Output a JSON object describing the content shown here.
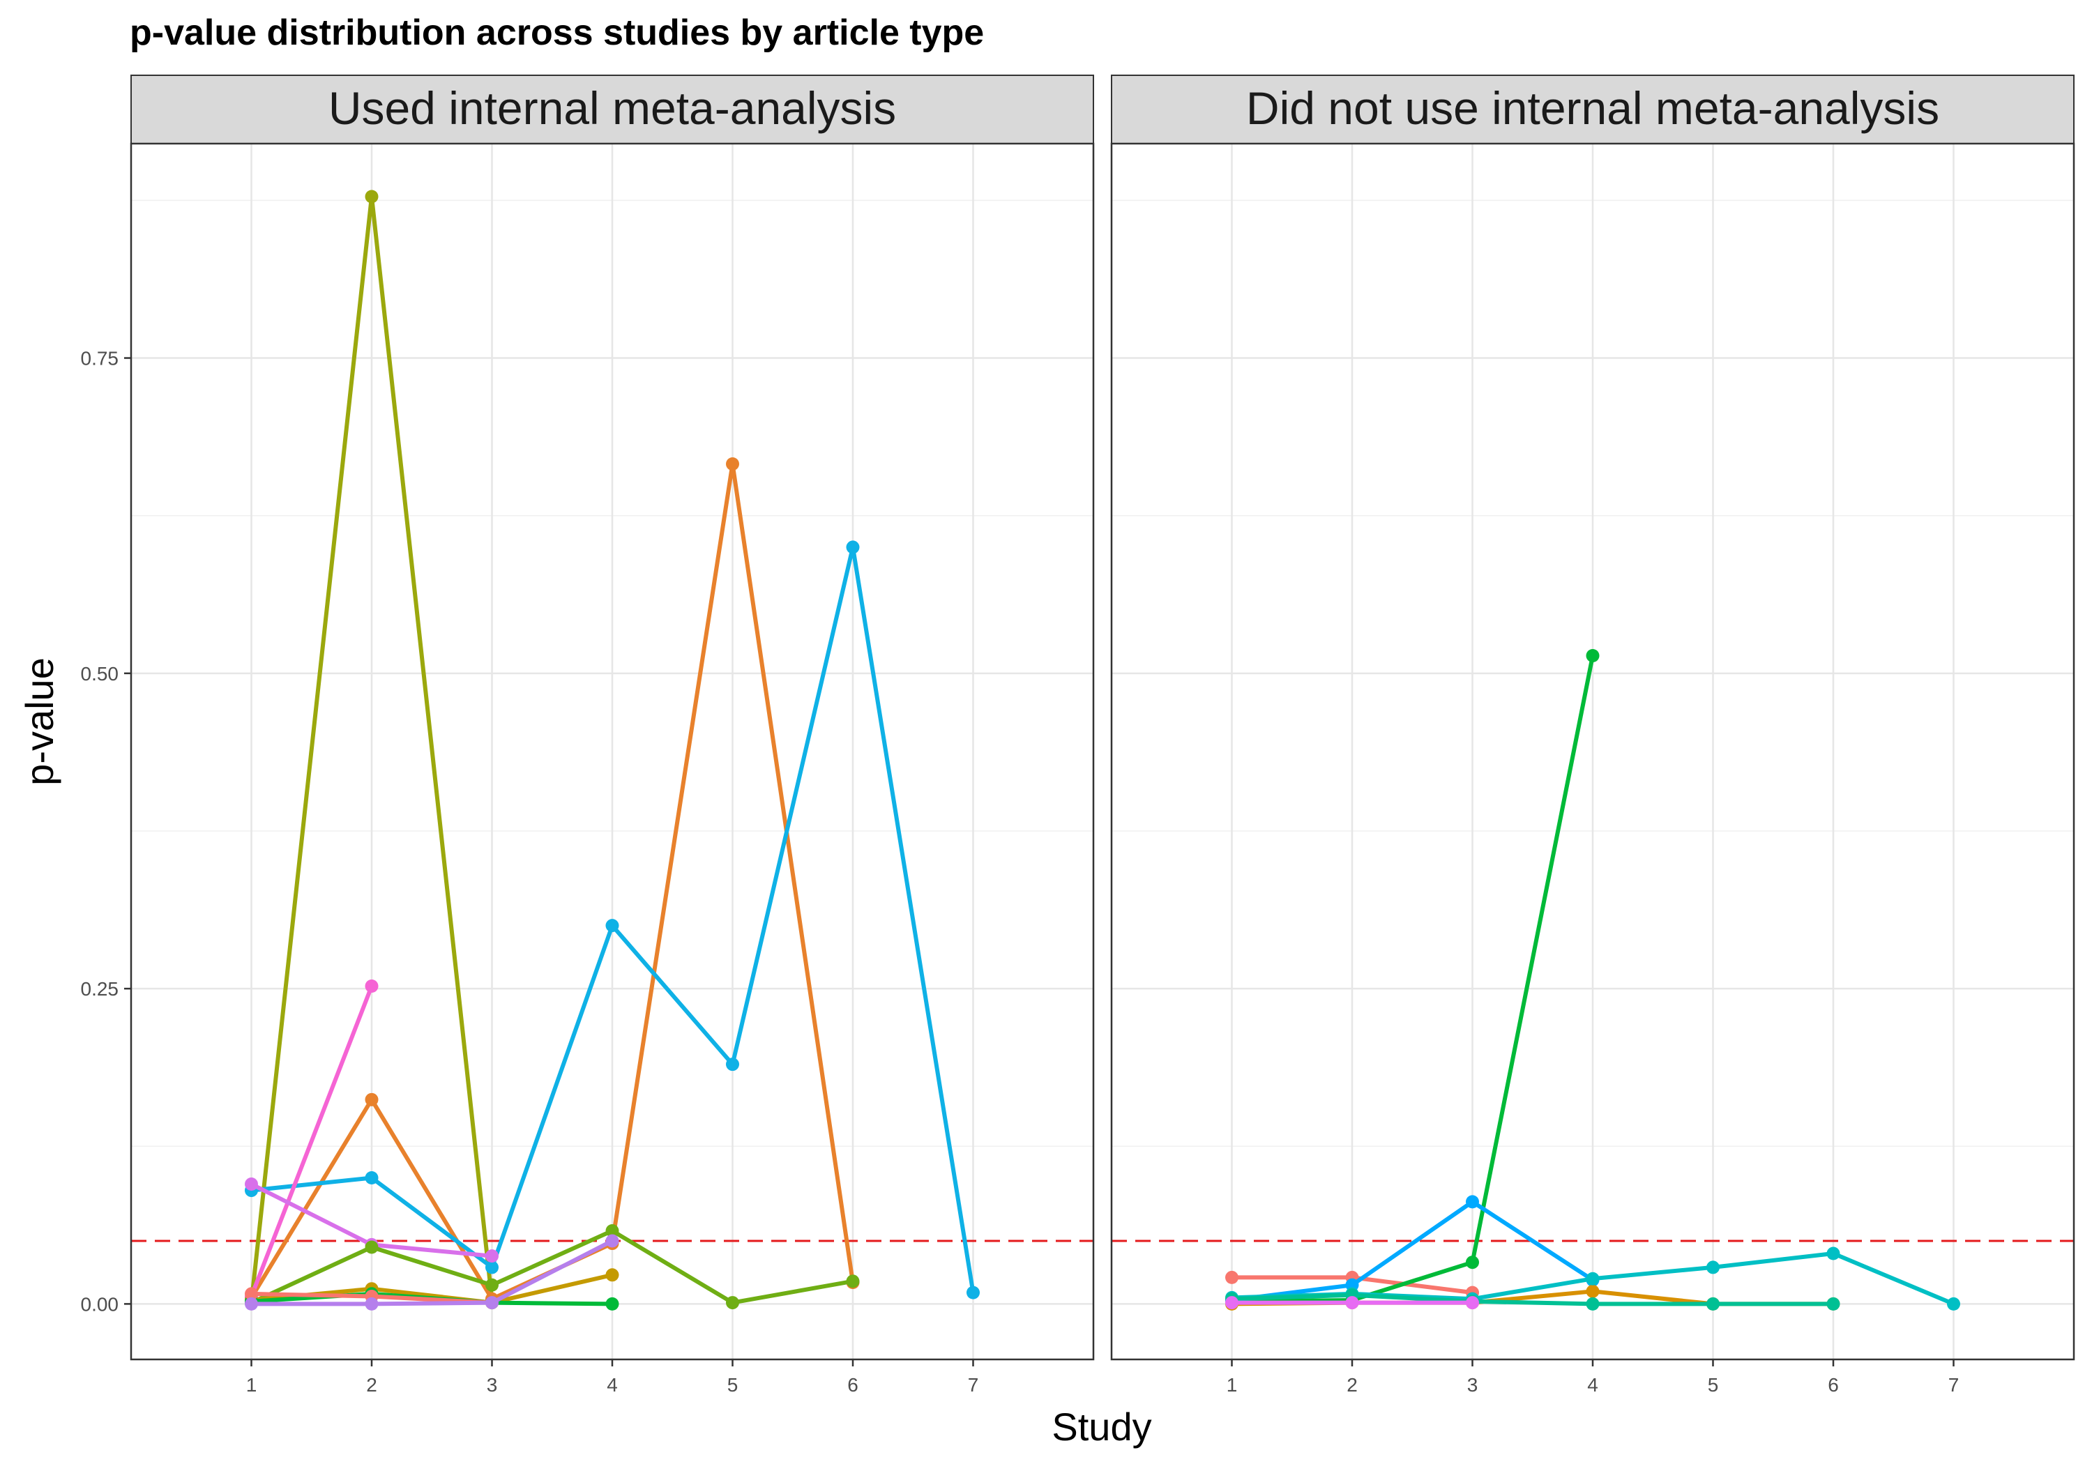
{
  "chart_data": {
    "type": "line",
    "title": "p-value distribution across studies by article type",
    "xlabel": "Study",
    "ylabel": "p-value",
    "x_ticks": [
      1,
      2,
      3,
      4,
      5,
      6,
      7
    ],
    "y_ticks": [
      0.0,
      0.25,
      0.5,
      0.75
    ],
    "y_tick_labels": [
      "0.00",
      "0.25",
      "0.50",
      "0.75"
    ],
    "xlim": [
      0,
      8
    ],
    "ylim": [
      -0.044,
      0.92
    ],
    "grid": true,
    "reference_line": {
      "y": 0.05,
      "color": "#e41a1c",
      "style": "dashed"
    },
    "facets": [
      {
        "label": "Used internal meta-analysis",
        "series": [
          {
            "color": "#9ba80d",
            "points": [
              [
                1,
                0.001
              ],
              [
                2,
                0.878
              ],
              [
                3,
                0.003
              ]
            ]
          },
          {
            "color": "#e8812c",
            "points": [
              [
                1,
                0.005
              ],
              [
                2,
                0.162
              ],
              [
                3,
                0.004
              ],
              [
                4,
                0.048
              ],
              [
                5,
                0.666
              ],
              [
                6,
                0.017
              ]
            ]
          },
          {
            "color": "#0fb1e6",
            "points": [
              [
                1,
                0.09
              ],
              [
                2,
                0.1
              ],
              [
                3,
                0.029
              ],
              [
                4,
                0.3
              ],
              [
                5,
                0.19
              ],
              [
                6,
                0.6
              ],
              [
                7,
                0.009
              ]
            ]
          },
          {
            "color": "#f564d4",
            "points": [
              [
                1,
                0.006
              ],
              [
                2,
                0.252
              ]
            ]
          },
          {
            "color": "#d870ea",
            "points": [
              [
                1,
                0.095
              ],
              [
                2,
                0.047
              ],
              [
                3,
                0.038
              ]
            ]
          },
          {
            "color": "#6fae14",
            "points": [
              [
                1,
                0.001
              ],
              [
                2,
                0.045
              ],
              [
                3,
                0.015
              ],
              [
                4,
                0.058
              ],
              [
                5,
                0.001
              ],
              [
                6,
                0.018
              ]
            ]
          },
          {
            "color": "#c49a00",
            "points": [
              [
                1,
                0.003
              ],
              [
                2,
                0.012
              ],
              [
                3,
                0.001
              ],
              [
                4,
                0.023
              ]
            ]
          },
          {
            "color": "#00ba38",
            "points": [
              [
                1,
                0.002
              ],
              [
                2,
                0.008
              ],
              [
                3,
                0.001
              ],
              [
                4,
                0.0
              ]
            ]
          },
          {
            "color": "#f8766d",
            "points": [
              [
                1,
                0.008
              ],
              [
                2,
                0.006
              ],
              [
                3,
                0.001
              ]
            ]
          },
          {
            "color": "#b57fec",
            "points": [
              [
                1,
                0.0
              ],
              [
                2,
                0.0
              ],
              [
                3,
                0.001
              ],
              [
                4,
                0.05
              ]
            ]
          }
        ]
      },
      {
        "label": "Did not use internal meta-analysis",
        "series": [
          {
            "color": "#f8766d",
            "points": [
              [
                1,
                0.021
              ],
              [
                2,
                0.021
              ],
              [
                3,
                0.009
              ]
            ]
          },
          {
            "color": "#00ba38",
            "points": [
              [
                1,
                0.002
              ],
              [
                2,
                0.003
              ],
              [
                3,
                0.033
              ],
              [
                4,
                0.514
              ]
            ]
          },
          {
            "color": "#00a9ff",
            "points": [
              [
                1,
                0.003
              ],
              [
                2,
                0.015
              ],
              [
                3,
                0.081
              ],
              [
                4,
                0.019
              ]
            ]
          },
          {
            "color": "#d89000",
            "points": [
              [
                1,
                0.0
              ],
              [
                2,
                0.001
              ],
              [
                3,
                0.001
              ],
              [
                4,
                0.01
              ],
              [
                5,
                0.0
              ],
              [
                6,
                0.0
              ]
            ]
          },
          {
            "color": "#00bfc4",
            "points": [
              [
                1,
                0.005
              ],
              [
                2,
                0.008
              ],
              [
                3,
                0.004
              ],
              [
                4,
                0.02
              ],
              [
                5,
                0.029
              ],
              [
                6,
                0.04
              ],
              [
                7,
                0.0
              ]
            ]
          },
          {
            "color": "#00c094",
            "points": [
              [
                1,
                0.004
              ],
              [
                2,
                0.007
              ],
              [
                3,
                0.002
              ],
              [
                4,
                0.0
              ],
              [
                5,
                0.0
              ],
              [
                6,
                0.0
              ]
            ]
          },
          {
            "color": "#e76bf3",
            "points": [
              [
                1,
                0.001
              ],
              [
                2,
                0.001
              ],
              [
                3,
                0.001
              ]
            ]
          }
        ]
      }
    ]
  }
}
